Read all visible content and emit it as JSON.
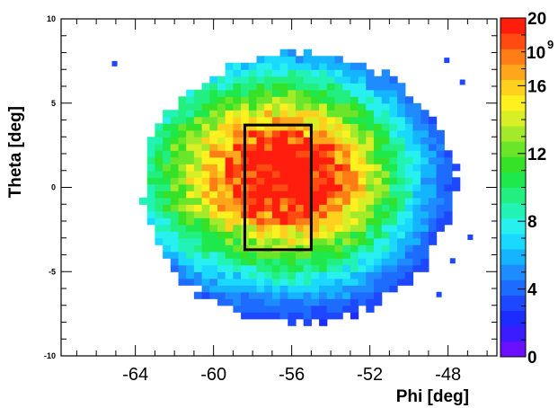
{
  "chart_data": {
    "type": "heatmap",
    "title": "",
    "xlabel": "Phi [deg]",
    "ylabel": "Theta [deg]",
    "xlim": [
      -67.8,
      -45.5
    ],
    "ylim": [
      -10,
      10
    ],
    "x_ticks": [
      "-64",
      "-60",
      "-56",
      "-52",
      "-48"
    ],
    "y_ticks": [
      "10",
      "5",
      "0",
      "-5",
      "-10"
    ],
    "z_ticks": [
      "0",
      "4",
      "8",
      "12",
      "16",
      "20"
    ],
    "z_multiplier_label": "10",
    "z_multiplier_exponent": "9",
    "zlim": [
      0,
      20
    ],
    "z_unit_scale": 1000000000,
    "peak": {
      "phi": -57.2,
      "theta": 0.9,
      "value": 19.5
    },
    "distribution_extent": {
      "phi": [
        -63.8,
        -47.6
      ],
      "theta": [
        -8.2,
        7.9
      ]
    },
    "selection_box": {
      "phi": [
        -58.4,
        -55.0
      ],
      "theta": [
        -3.7,
        3.7
      ]
    },
    "grid": false,
    "colorbar": "right",
    "palette": [
      "#6a0fff",
      "#3b1bff",
      "#1d2bff",
      "#1d48ff",
      "#1e6cff",
      "#1e8cff",
      "#15b4ff",
      "#1ad8ff",
      "#27f0ee",
      "#23f2b5",
      "#22ef80",
      "#1fe84c",
      "#36e227",
      "#6ae52a",
      "#a3ea2a",
      "#d8ef27",
      "#fff020",
      "#ffd01e",
      "#ffa71a",
      "#ff7d16",
      "#ff4a12",
      "#ff1e0e"
    ]
  }
}
